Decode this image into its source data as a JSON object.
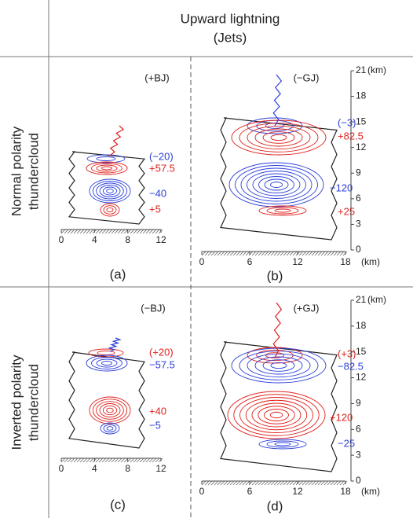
{
  "header": {
    "line1": "Upward lightning",
    "line2": "(Jets)"
  },
  "rows": [
    {
      "line1": "Normal polarity",
      "line2": "thundercloud"
    },
    {
      "line1": "Inverted polarity",
      "line2": "thundercloud"
    }
  ],
  "panels": [
    {
      "tag": "(+BJ)",
      "letter": "(a)",
      "x_ticks": [
        0,
        4,
        8,
        12
      ],
      "charges": [
        {
          "text": "(−20)",
          "color": "#2b3fd9"
        },
        {
          "text": "+57.5",
          "color": "#e0201b"
        },
        {
          "text": "−40",
          "color": "#2b3fd9"
        },
        {
          "text": "+5",
          "color": "#e0201b"
        }
      ]
    },
    {
      "tag": "(−GJ)",
      "letter": "(b)",
      "x_ticks": [
        0,
        6,
        12,
        18
      ],
      "x_unit": "(km)",
      "altitude_ticks": [
        21,
        18,
        15,
        12,
        9,
        6,
        3,
        0
      ],
      "altitude_unit": "(km)",
      "charges": [
        {
          "text": "(−3)",
          "color": "#2b3fd9"
        },
        {
          "text": "+82.5",
          "color": "#e0201b"
        },
        {
          "text": "−120",
          "color": "#2b3fd9"
        },
        {
          "text": "+25",
          "color": "#e0201b"
        }
      ]
    },
    {
      "tag": "(−BJ)",
      "letter": "(c)",
      "x_ticks": [
        0,
        4,
        8,
        12
      ],
      "charges": [
        {
          "text": "(+20)",
          "color": "#e0201b"
        },
        {
          "text": "−57.5",
          "color": "#2b3fd9"
        },
        {
          "text": "+40",
          "color": "#e0201b"
        },
        {
          "text": "−5",
          "color": "#2b3fd9"
        }
      ]
    },
    {
      "tag": "(+GJ)",
      "letter": "(d)",
      "x_ticks": [
        0,
        6,
        12,
        18
      ],
      "x_unit": "(km)",
      "altitude_ticks": [
        21,
        18,
        15,
        12,
        9,
        6,
        3,
        0
      ],
      "altitude_unit": "(km)",
      "charges": [
        {
          "text": "(+3)",
          "color": "#e0201b"
        },
        {
          "text": "−82.5",
          "color": "#2b3fd9"
        },
        {
          "text": "+120",
          "color": "#e0201b"
        },
        {
          "text": "−25",
          "color": "#2b3fd9"
        }
      ]
    }
  ]
}
